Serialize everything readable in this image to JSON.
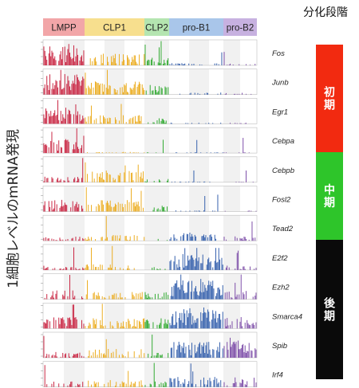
{
  "chart_data": {
    "type": "bar",
    "ylabel": "1細胞レベルのmRNA発現",
    "stage_legend": {
      "title": "分化段階",
      "bands": [
        {
          "label": "初期",
          "color": "#f22a10"
        },
        {
          "label": "中期",
          "color": "#2ec52a"
        },
        {
          "label": "後期",
          "color": "#0a0a0a"
        }
      ]
    },
    "populations": [
      {
        "name": "LMPP",
        "color": "#c81e3c",
        "header_color": "#f2a6a8"
      },
      {
        "name": "CLP1",
        "color": "#ebaa19",
        "header_color": "#f7df8e"
      },
      {
        "name": "CLP2",
        "color": "#2aa82a",
        "header_color": "#b4e5b0"
      },
      {
        "name": "pro-B1",
        "color": "#2d5aaa",
        "header_color": "#a9c6ea"
      },
      {
        "name": "pro-B2",
        "color": "#7846a5",
        "header_color": "#c7b1e0"
      }
    ],
    "genes": [
      {
        "name": "Fos",
        "levels": [
          0.7,
          0.4,
          0.3,
          0.08,
          0.06
        ]
      },
      {
        "name": "Junb",
        "levels": [
          0.7,
          0.45,
          0.35,
          0.08,
          0.06
        ]
      },
      {
        "name": "Egr1",
        "levels": [
          0.6,
          0.3,
          0.2,
          0.04,
          0.04
        ]
      },
      {
        "name": "Cebpa",
        "levels": [
          0.5,
          0.04,
          0.02,
          0.02,
          0.02
        ]
      },
      {
        "name": "Cebpb",
        "levels": [
          0.2,
          0.4,
          0.12,
          0.03,
          0.03
        ]
      },
      {
        "name": "Fosl2",
        "levels": [
          0.4,
          0.4,
          0.2,
          0.04,
          0.04
        ]
      },
      {
        "name": "Tead2",
        "levels": [
          0.15,
          0.2,
          0.08,
          0.3,
          0.15
        ]
      },
      {
        "name": "E2f2",
        "levels": [
          0.15,
          0.2,
          0.1,
          0.55,
          0.15
        ]
      },
      {
        "name": "Ezh2",
        "levels": [
          0.3,
          0.25,
          0.25,
          0.7,
          0.3
        ]
      },
      {
        "name": "Smarca4",
        "levels": [
          0.4,
          0.35,
          0.35,
          0.7,
          0.4
        ]
      },
      {
        "name": "Spib",
        "levels": [
          0.2,
          0.3,
          0.2,
          0.55,
          0.55
        ]
      },
      {
        "name": "Irf4",
        "levels": [
          0.2,
          0.25,
          0.2,
          0.35,
          0.35
        ]
      }
    ]
  }
}
